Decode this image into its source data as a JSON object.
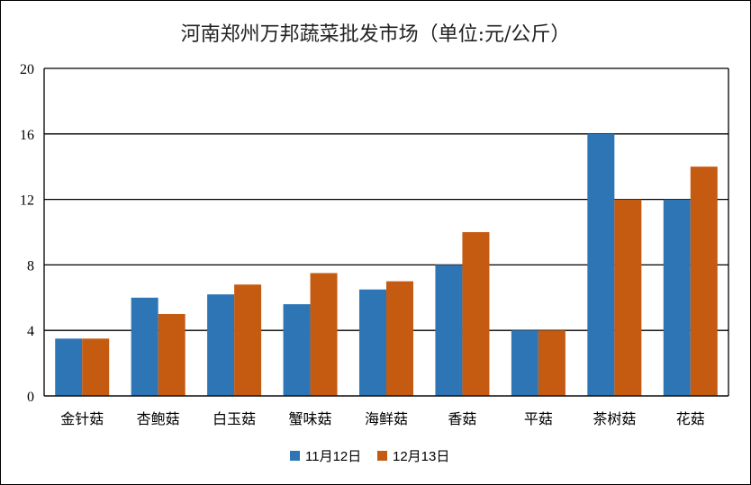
{
  "chart_data": {
    "type": "bar",
    "title": "河南郑州万邦蔬菜批发市场（单位:元/公斤）",
    "categories": [
      "金针菇",
      "杏鲍菇",
      "白玉菇",
      "蟹味菇",
      "海鲜菇",
      "香菇",
      "平菇",
      "茶树菇",
      "花菇"
    ],
    "series": [
      {
        "name": "11月12日",
        "color": "#2e75b6",
        "values": [
          3.5,
          6,
          6.2,
          5.6,
          6.5,
          8,
          4,
          16,
          12
        ]
      },
      {
        "name": "12月13日",
        "color": "#c55a11",
        "values": [
          3.5,
          5,
          6.8,
          7.5,
          7,
          10,
          4,
          12,
          14
        ]
      }
    ],
    "ylim": [
      0,
      20
    ],
    "yticks": [
      0,
      4,
      8,
      12,
      16,
      20
    ],
    "grid": true,
    "legend": "bottom"
  }
}
